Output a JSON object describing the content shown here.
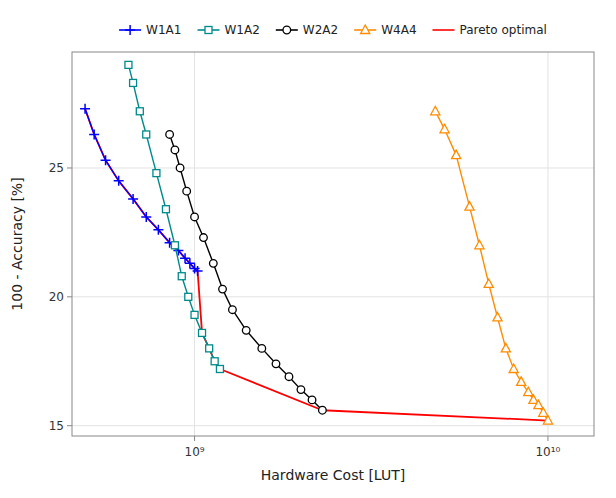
{
  "chart_data": {
    "type": "line",
    "title": "",
    "xlabel": "Hardware Cost [LUT]",
    "ylabel": "100 - Accuracy [%]",
    "log": "x",
    "grid": true,
    "legend": "top",
    "xlim": [
      450000000.0,
      13500000000.0
    ],
    "ylim": [
      14.6,
      29.5
    ],
    "xticks": [
      {
        "value": 1000000000,
        "label": "10⁹"
      },
      {
        "value": 10000000000,
        "label": "10¹⁰"
      }
    ],
    "yticks": [
      15,
      20,
      25
    ],
    "series": [
      {
        "name": "W1A1",
        "color": "#0000ff",
        "marker": "plus",
        "x": [
          490000000.0,
          520000000.0,
          560000000.0,
          610000000.0,
          670000000.0,
          730000000.0,
          790000000.0,
          850000000.0,
          900000000.0,
          940000000.0,
          970000000.0,
          1000000000.0,
          1020000000.0
        ],
        "values": [
          27.3,
          26.3,
          25.3,
          24.5,
          23.8,
          23.1,
          22.6,
          22.1,
          21.8,
          21.5,
          21.3,
          21.1,
          21.0
        ]
      },
      {
        "name": "W1A2",
        "color": "#008b8b",
        "marker": "square",
        "x": [
          650000000.0,
          670000000.0,
          700000000.0,
          730000000.0,
          780000000.0,
          830000000.0,
          880000000.0,
          920000000.0,
          960000000.0,
          1000000000.0,
          1050000000.0,
          1100000000.0,
          1140000000.0,
          1180000000.0
        ],
        "values": [
          29.0,
          28.3,
          27.2,
          26.3,
          24.8,
          23.4,
          22.0,
          20.8,
          20.0,
          19.3,
          18.6,
          18.0,
          17.5,
          17.2
        ]
      },
      {
        "name": "W2A2",
        "color": "#000000",
        "marker": "circle",
        "x": [
          850000000.0,
          880000000.0,
          910000000.0,
          950000000.0,
          1000000000.0,
          1060000000.0,
          1130000000.0,
          1200000000.0,
          1280000000.0,
          1400000000.0,
          1550000000.0,
          1700000000.0,
          1850000000.0,
          2000000000.0,
          2150000000.0,
          2300000000.0
        ],
        "values": [
          26.3,
          25.7,
          25.0,
          24.1,
          23.1,
          22.3,
          21.3,
          20.3,
          19.5,
          18.7,
          18.0,
          17.4,
          16.9,
          16.4,
          16.0,
          15.6
        ]
      },
      {
        "name": "W4A4",
        "color": "#ff8c00",
        "marker": "triangle",
        "x": [
          4800000000.0,
          5100000000.0,
          5500000000.0,
          6000000000.0,
          6400000000.0,
          6800000000.0,
          7200000000.0,
          7600000000.0,
          8000000000.0,
          8400000000.0,
          8800000000.0,
          9100000000.0,
          9400000000.0,
          9700000000.0,
          10000000000.0
        ],
        "values": [
          27.2,
          26.5,
          25.5,
          23.5,
          22.0,
          20.5,
          19.2,
          18.0,
          17.2,
          16.7,
          16.3,
          16.0,
          15.8,
          15.5,
          15.2
        ]
      },
      {
        "name": "Pareto optimal",
        "color": "#ff0000",
        "x": [
          490000000.0,
          520000000.0,
          560000000.0,
          610000000.0,
          670000000.0,
          730000000.0,
          790000000.0,
          850000000.0,
          900000000.0,
          940000000.0,
          970000000.0,
          1000000000.0,
          1020000000.0,
          1050000000.0,
          1100000000.0,
          1140000000.0,
          1180000000.0,
          2300000000.0,
          10000000000.0
        ],
        "values": [
          27.3,
          26.3,
          25.3,
          24.5,
          23.8,
          23.1,
          22.6,
          22.1,
          21.8,
          21.5,
          21.3,
          21.1,
          21.0,
          18.6,
          18.0,
          17.5,
          17.2,
          15.6,
          15.2
        ]
      }
    ]
  }
}
